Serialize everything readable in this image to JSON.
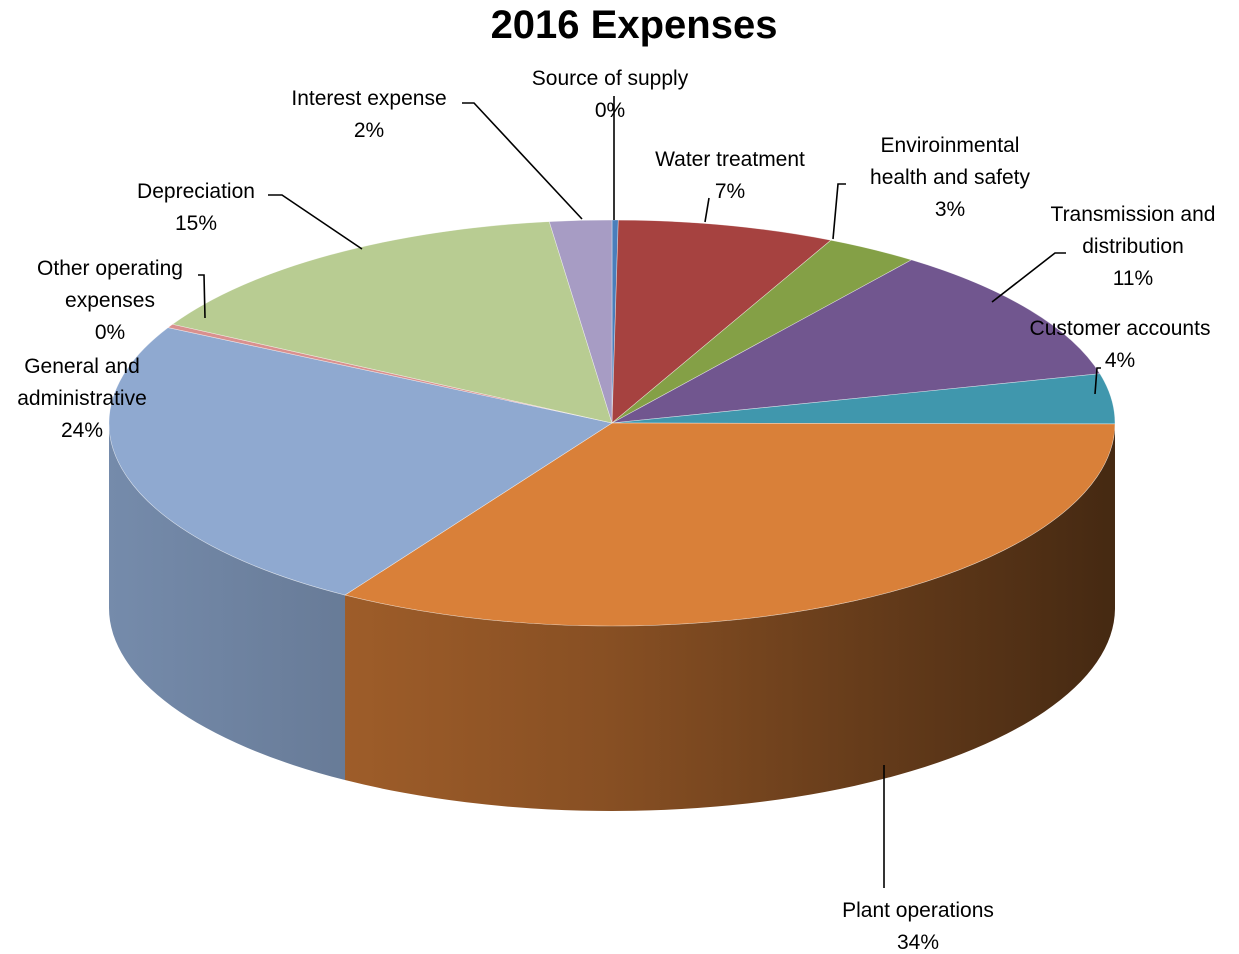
{
  "chart_data": {
    "type": "pie",
    "variant": "3d",
    "title": "2016 Expenses",
    "slices": [
      {
        "label": "Source of supply",
        "value": 0.2,
        "pct_label": "0%",
        "color": "#4a7ebb"
      },
      {
        "label": "Water treatment",
        "value": 7,
        "pct_label": "7%",
        "color": "#a64240"
      },
      {
        "label": "Enviroinmental health and safety",
        "value": 3,
        "pct_label": "3%",
        "color": "#84a046"
      },
      {
        "label": "Transmission and distribution",
        "value": 11,
        "pct_label": "11%",
        "color": "#71568f"
      },
      {
        "label": "Customer accounts",
        "value": 4,
        "pct_label": "4%",
        "color": "#4097ad"
      },
      {
        "label": "Plant operations",
        "value": 34,
        "pct_label": "34%",
        "color": "#d98039"
      },
      {
        "label": "General and administrative",
        "value": 24,
        "pct_label": "24%",
        "color": "#8fa9d0"
      },
      {
        "label": "Other operating expenses",
        "value": 0.3,
        "pct_label": "0%",
        "color": "#d9908e"
      },
      {
        "label": "Depreciation",
        "value": 15,
        "pct_label": "15%",
        "color": "#b8cc92"
      },
      {
        "label": "Interest expense",
        "value": 2,
        "pct_label": "2%",
        "color": "#a79cc4"
      }
    ]
  }
}
